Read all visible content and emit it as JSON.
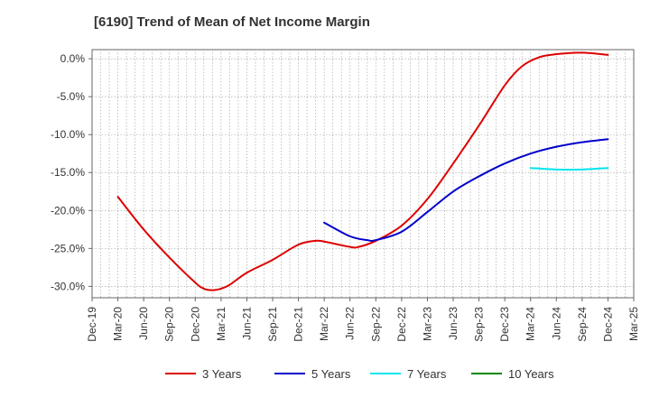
{
  "chart_data": {
    "type": "line",
    "title": "[6190]  Trend of Mean of Net Income Margin",
    "xlabel": "",
    "ylabel": "",
    "ylim": [
      -31.5,
      1.2
    ],
    "yticks": [
      0,
      -5,
      -10,
      -15,
      -20,
      -25,
      -30
    ],
    "ytick_labels": [
      "0.0%",
      "-5.0%",
      "-10.0%",
      "-15.0%",
      "-20.0%",
      "-25.0%",
      "-30.0%"
    ],
    "x_range": [
      "Dec-19",
      "Mar-25"
    ],
    "x_ticks": [
      "Dec-19",
      "Mar-20",
      "Jun-20",
      "Sep-20",
      "Dec-20",
      "Mar-21",
      "Jun-21",
      "Sep-21",
      "Dec-21",
      "Mar-22",
      "Jun-22",
      "Sep-22",
      "Dec-22",
      "Mar-23",
      "Jun-23",
      "Sep-23",
      "Dec-23",
      "Mar-24",
      "Jun-24",
      "Sep-24",
      "Dec-24",
      "Mar-25"
    ],
    "grid": true,
    "legend_position": "bottom",
    "series": [
      {
        "name": "3 Years",
        "color": "#dd0000",
        "points": [
          [
            "Mar-20",
            -18.2
          ],
          [
            "Jun-20",
            -22.5
          ],
          [
            "Sep-20",
            -26.2
          ],
          [
            "Dec-20",
            -29.5
          ],
          [
            "Jan-21",
            -30.3
          ],
          [
            "Feb-21",
            -30.5
          ],
          [
            "Mar-21",
            -30.3
          ],
          [
            "Apr-21",
            -29.8
          ],
          [
            "Jun-21",
            -28.2
          ],
          [
            "Sep-21",
            -26.5
          ],
          [
            "Dec-21",
            -24.5
          ],
          [
            "Feb-22",
            -24.0
          ],
          [
            "Mar-22",
            -24.1
          ],
          [
            "Jun-22",
            -24.8
          ],
          [
            "Jul-22",
            -24.8
          ],
          [
            "Sep-22",
            -24.0
          ],
          [
            "Dec-22",
            -22.0
          ],
          [
            "Mar-23",
            -18.5
          ],
          [
            "Jun-23",
            -13.8
          ],
          [
            "Sep-23",
            -8.8
          ],
          [
            "Dec-23",
            -3.5
          ],
          [
            "Feb-24",
            -1.0
          ],
          [
            "Apr-24",
            0.2
          ],
          [
            "Jun-24",
            0.6
          ],
          [
            "Sep-24",
            0.8
          ],
          [
            "Dec-24",
            0.5
          ]
        ]
      },
      {
        "name": "5 Years",
        "color": "#0000cc",
        "points": [
          [
            "Mar-22",
            -21.6
          ],
          [
            "Jun-22",
            -23.4
          ],
          [
            "Aug-22",
            -23.9
          ],
          [
            "Sep-22",
            -23.9
          ],
          [
            "Dec-22",
            -22.8
          ],
          [
            "Mar-23",
            -20.2
          ],
          [
            "Jun-23",
            -17.5
          ],
          [
            "Sep-23",
            -15.5
          ],
          [
            "Dec-23",
            -13.8
          ],
          [
            "Mar-24",
            -12.5
          ],
          [
            "Jun-24",
            -11.6
          ],
          [
            "Sep-24",
            -11.0
          ],
          [
            "Dec-24",
            -10.6
          ]
        ]
      },
      {
        "name": "7 Years",
        "color": "#00e5ee",
        "points": [
          [
            "Mar-24",
            -14.4
          ],
          [
            "Jun-24",
            -14.6
          ],
          [
            "Sep-24",
            -14.6
          ],
          [
            "Dec-24",
            -14.4
          ]
        ]
      },
      {
        "name": "10 Years",
        "color": "#008800",
        "points": []
      }
    ]
  }
}
